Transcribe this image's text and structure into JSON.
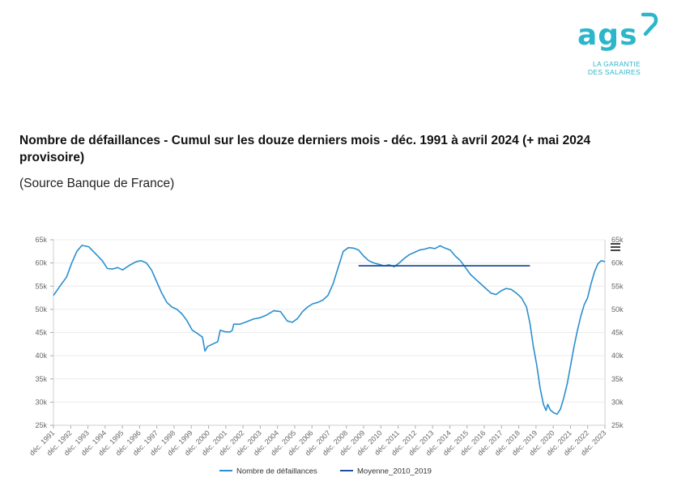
{
  "logo": {
    "name": "ags",
    "tagline_line1": "LA GARANTIE",
    "tagline_line2": "DES SALAIRES",
    "color": "#2bb6c9"
  },
  "header": {
    "title": "Nombre de défaillances - Cumul sur les douze derniers mois - déc. 1991 à avril 2024 (+ mai 2024 provisoire)",
    "source": "(Source Banque de France)"
  },
  "chart_data": {
    "type": "line",
    "title": "",
    "xlabel": "",
    "ylabel": "",
    "ylim": [
      25000,
      65000
    ],
    "y_ticks": [
      "25k",
      "30k",
      "35k",
      "40k",
      "45k",
      "50k",
      "55k",
      "60k",
      "65k"
    ],
    "x_tick_labels": [
      "déc. 1991",
      "déc. 1992",
      "déc. 1993",
      "déc. 1994",
      "déc. 1995",
      "déc. 1996",
      "déc. 1997",
      "déc. 1998",
      "déc. 1999",
      "déc. 2000",
      "déc. 2001",
      "déc. 2002",
      "déc. 2003",
      "déc. 2004",
      "déc. 2005",
      "déc. 2006",
      "déc. 2007",
      "déc. 2008",
      "déc. 2009",
      "déc. 2010",
      "déc. 2011",
      "déc. 2012",
      "déc. 2013",
      "déc. 2014",
      "déc. 2015",
      "déc. 2016",
      "déc. 2017",
      "déc. 2018",
      "déc. 2019",
      "déc. 2020",
      "déc. 2021",
      "déc. 2022",
      "déc. 2023"
    ],
    "x_range": [
      1991.92,
      2024.42
    ],
    "grid": true,
    "legend_position": "bottom",
    "series": [
      {
        "name": "Nombre de défaillances",
        "color": "#2a8fd0",
        "points": [
          [
            1991.92,
            53000
          ],
          [
            1992.3,
            55000
          ],
          [
            1992.7,
            57000
          ],
          [
            1993.0,
            60000
          ],
          [
            1993.3,
            62500
          ],
          [
            1993.6,
            63800
          ],
          [
            1994.0,
            63500
          ],
          [
            1994.4,
            62000
          ],
          [
            1994.8,
            60500
          ],
          [
            1995.1,
            58800
          ],
          [
            1995.4,
            58700
          ],
          [
            1995.7,
            59000
          ],
          [
            1996.0,
            58500
          ],
          [
            1996.4,
            59500
          ],
          [
            1996.8,
            60300
          ],
          [
            1997.1,
            60500
          ],
          [
            1997.4,
            60000
          ],
          [
            1997.7,
            58500
          ],
          [
            1998.0,
            56000
          ],
          [
            1998.3,
            53500
          ],
          [
            1998.6,
            51500
          ],
          [
            1998.9,
            50500
          ],
          [
            1999.2,
            50000
          ],
          [
            1999.5,
            49000
          ],
          [
            1999.8,
            47500
          ],
          [
            2000.1,
            45500
          ],
          [
            2000.4,
            44800
          ],
          [
            2000.7,
            44000
          ],
          [
            2000.85,
            41000
          ],
          [
            2001.0,
            42000
          ],
          [
            2001.3,
            42500
          ],
          [
            2001.6,
            43000
          ],
          [
            2001.75,
            45500
          ],
          [
            2002.0,
            45200
          ],
          [
            2002.3,
            45100
          ],
          [
            2002.45,
            45400
          ],
          [
            2002.55,
            46800
          ],
          [
            2002.9,
            46800
          ],
          [
            2003.3,
            47300
          ],
          [
            2003.7,
            47900
          ],
          [
            2004.1,
            48200
          ],
          [
            2004.5,
            48800
          ],
          [
            2004.9,
            49700
          ],
          [
            2005.3,
            49500
          ],
          [
            2005.7,
            47500
          ],
          [
            2006.0,
            47200
          ],
          [
            2006.3,
            48000
          ],
          [
            2006.6,
            49500
          ],
          [
            2006.9,
            50500
          ],
          [
            2007.2,
            51200
          ],
          [
            2007.5,
            51500
          ],
          [
            2007.8,
            52000
          ],
          [
            2008.1,
            53000
          ],
          [
            2008.4,
            55500
          ],
          [
            2008.7,
            59000
          ],
          [
            2009.0,
            62500
          ],
          [
            2009.3,
            63300
          ],
          [
            2009.6,
            63200
          ],
          [
            2009.9,
            62800
          ],
          [
            2010.2,
            61500
          ],
          [
            2010.5,
            60500
          ],
          [
            2010.8,
            60000
          ],
          [
            2011.1,
            59700
          ],
          [
            2011.4,
            59400
          ],
          [
            2011.7,
            59600
          ],
          [
            2012.0,
            59200
          ],
          [
            2012.3,
            60000
          ],
          [
            2012.6,
            61000
          ],
          [
            2012.9,
            61800
          ],
          [
            2013.2,
            62300
          ],
          [
            2013.5,
            62800
          ],
          [
            2013.8,
            63000
          ],
          [
            2014.1,
            63300
          ],
          [
            2014.4,
            63100
          ],
          [
            2014.7,
            63700
          ],
          [
            2015.0,
            63200
          ],
          [
            2015.3,
            62800
          ],
          [
            2015.6,
            61500
          ],
          [
            2015.9,
            60500
          ],
          [
            2016.2,
            59000
          ],
          [
            2016.5,
            57500
          ],
          [
            2016.8,
            56500
          ],
          [
            2017.1,
            55500
          ],
          [
            2017.4,
            54500
          ],
          [
            2017.7,
            53500
          ],
          [
            2018.0,
            53200
          ],
          [
            2018.3,
            54000
          ],
          [
            2018.6,
            54500
          ],
          [
            2018.9,
            54300
          ],
          [
            2019.2,
            53500
          ],
          [
            2019.5,
            52500
          ],
          [
            2019.8,
            50500
          ],
          [
            2020.0,
            47000
          ],
          [
            2020.2,
            42000
          ],
          [
            2020.4,
            38000
          ],
          [
            2020.6,
            33000
          ],
          [
            2020.8,
            29500
          ],
          [
            2020.95,
            28200
          ],
          [
            2021.05,
            29500
          ],
          [
            2021.2,
            28300
          ],
          [
            2021.4,
            27700
          ],
          [
            2021.6,
            27400
          ],
          [
            2021.8,
            28500
          ],
          [
            2022.0,
            31000
          ],
          [
            2022.2,
            34000
          ],
          [
            2022.4,
            38000
          ],
          [
            2022.6,
            42000
          ],
          [
            2022.8,
            45500
          ],
          [
            2023.0,
            48500
          ],
          [
            2023.2,
            51000
          ],
          [
            2023.4,
            52500
          ],
          [
            2023.6,
            55500
          ],
          [
            2023.8,
            58000
          ],
          [
            2024.0,
            59800
          ],
          [
            2024.2,
            60500
          ],
          [
            2024.42,
            60300
          ]
        ]
      },
      {
        "name": "Moyenne_2010_2019",
        "color": "#1f4e9c",
        "points": [
          [
            2009.9,
            59400
          ],
          [
            2020.0,
            59400
          ]
        ]
      }
    ]
  }
}
